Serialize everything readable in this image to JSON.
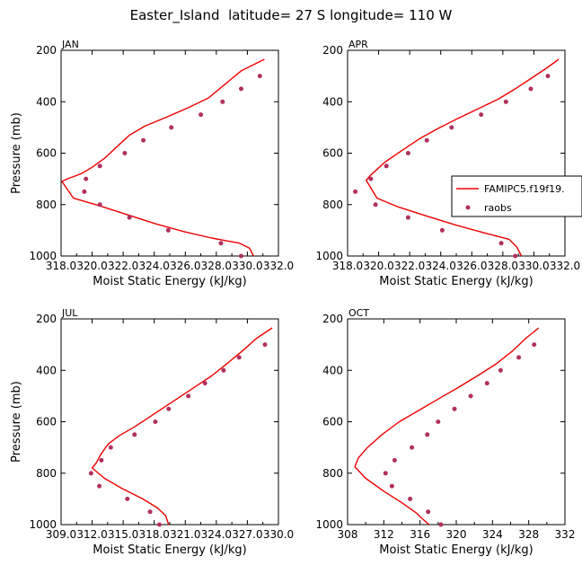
{
  "title": "Easter_Island  latitude= 27 S longitude= 110 W",
  "colors": {
    "model": "#ee0000",
    "obs": "#b03060"
  },
  "legend": {
    "model_label": "FAMIPC5.f19f19.",
    "obs_label": "raobs"
  },
  "chart_data": [
    {
      "type": "line",
      "panel": "JAN",
      "xlabel": "Moist Static Energy (kJ/kg)",
      "ylabel": "Pressure (mb)",
      "xlim": [
        318.0,
        332.0
      ],
      "ylim": [
        1000,
        200
      ],
      "xticks": [
        "318.0",
        "320.0",
        "322.0",
        "324.0",
        "326.0",
        "328.0",
        "330.0",
        "332.0"
      ],
      "yticks": [
        "200",
        "400",
        "600",
        "800",
        "1000"
      ],
      "series": [
        {
          "name": "FAMIPC5.f19f19.",
          "style": "line",
          "x": [
            331.1,
            329.6,
            328.6,
            327.5,
            326.3,
            324.8,
            323.4,
            322.4,
            321.6,
            320.8,
            320.0,
            319.3,
            318.4,
            318.05,
            318.8,
            320.5,
            322.3,
            324.1,
            325.9,
            327.7,
            329.5,
            330.15,
            330.4
          ],
          "y": [
            235,
            280,
            330,
            385,
            420,
            460,
            495,
            530,
            575,
            620,
            655,
            680,
            700,
            710,
            775,
            805,
            840,
            875,
            905,
            930,
            950,
            970,
            1000
          ]
        },
        {
          "name": "raobs",
          "style": "markers",
          "x": [
            330.8,
            329.6,
            328.4,
            327.0,
            325.1,
            323.3,
            322.1,
            320.5,
            319.6,
            319.5,
            320.5,
            322.4,
            324.9,
            328.3,
            329.6
          ],
          "y": [
            300,
            350,
            400,
            450,
            500,
            550,
            600,
            650,
            700,
            750,
            800,
            850,
            900,
            950,
            1000
          ]
        }
      ]
    },
    {
      "type": "line",
      "panel": "APR",
      "xlabel": "Moist Static Energy (kJ/kg)",
      "ylabel": "",
      "xlim": [
        318.0,
        332.0
      ],
      "ylim": [
        1000,
        200
      ],
      "xticks": [
        "318.0",
        "320.0",
        "322.0",
        "324.0",
        "326.0",
        "328.0",
        "330.0",
        "332.0"
      ],
      "yticks": [
        "200",
        "400",
        "600",
        "800",
        "1000"
      ],
      "series": [
        {
          "name": "FAMIPC5.f19f19.",
          "style": "line",
          "x": [
            331.6,
            330.8,
            329.8,
            328.8,
            327.7,
            326.5,
            325.1,
            323.8,
            322.6,
            321.5,
            320.4,
            319.5,
            319.2,
            319.9,
            321.3,
            323.1,
            325.0,
            326.8,
            328.4,
            328.9,
            329.2
          ],
          "y": [
            235,
            270,
            310,
            350,
            390,
            425,
            465,
            505,
            545,
            590,
            635,
            685,
            705,
            775,
            810,
            845,
            880,
            910,
            935,
            965,
            1000
          ]
        },
        {
          "name": "raobs",
          "style": "markers",
          "x": [
            330.9,
            329.8,
            328.2,
            326.6,
            324.7,
            323.1,
            321.9,
            320.5,
            319.5,
            318.5,
            319.8,
            321.9,
            324.1,
            327.9,
            328.8
          ],
          "y": [
            300,
            350,
            400,
            450,
            500,
            550,
            600,
            650,
            700,
            750,
            800,
            850,
            900,
            950,
            1000
          ]
        }
      ]
    },
    {
      "type": "line",
      "panel": "JUL",
      "xlabel": "Moist Static Energy (kJ/kg)",
      "ylabel": "Pressure (mb)",
      "xlim": [
        309.0,
        330.0
      ],
      "ylim": [
        1000,
        200
      ],
      "xticks": [
        "309.0",
        "312.0",
        "315.0",
        "318.0",
        "321.0",
        "324.0",
        "327.0",
        "330.0"
      ],
      "yticks": [
        "200",
        "400",
        "600",
        "800",
        "1000"
      ],
      "series": [
        {
          "name": "FAMIPC5.f19f19.",
          "style": "line",
          "x": [
            329.4,
            327.9,
            326.5,
            325.0,
            323.6,
            322.1,
            320.6,
            319.1,
            317.6,
            316.1,
            314.6,
            313.6,
            313.3,
            312.8,
            312.4,
            312.0,
            313.2,
            314.9,
            316.9,
            318.3,
            319.1,
            319.4
          ],
          "y": [
            235,
            275,
            325,
            375,
            420,
            460,
            500,
            540,
            580,
            620,
            655,
            685,
            700,
            730,
            760,
            780,
            820,
            860,
            900,
            935,
            965,
            1000
          ]
        },
        {
          "name": "raobs",
          "style": "markers",
          "x": [
            328.7,
            326.2,
            324.7,
            322.9,
            321.3,
            319.4,
            318.1,
            316.1,
            313.8,
            312.9,
            311.9,
            312.7,
            315.4,
            317.6,
            318.5
          ],
          "y": [
            300,
            350,
            400,
            450,
            500,
            550,
            600,
            650,
            700,
            750,
            800,
            850,
            900,
            950,
            1000
          ]
        }
      ]
    },
    {
      "type": "line",
      "panel": "OCT",
      "xlabel": "Moist Static Energy (kJ/kg)",
      "ylabel": "",
      "xlim": [
        308,
        332
      ],
      "ylim": [
        1000,
        200
      ],
      "xticks": [
        "308",
        "312",
        "316",
        "320",
        "324",
        "328",
        "332"
      ],
      "yticks": [
        "200",
        "400",
        "600",
        "800",
        "1000"
      ],
      "series": [
        {
          "name": "FAMIPC5.f19f19.",
          "style": "line",
          "x": [
            329.1,
            327.7,
            326.2,
            324.4,
            322.4,
            320.3,
            318.1,
            315.9,
            313.7,
            311.8,
            310.2,
            309.2,
            308.8,
            310.0,
            312.0,
            314.0,
            315.6,
            316.5,
            317.0
          ],
          "y": [
            235,
            275,
            325,
            375,
            420,
            465,
            510,
            555,
            600,
            650,
            700,
            740,
            775,
            820,
            870,
            915,
            955,
            985,
            1000
          ]
        },
        {
          "name": "raobs",
          "style": "markers",
          "x": [
            328.6,
            326.9,
            324.9,
            323.4,
            321.6,
            319.8,
            318.0,
            316.8,
            315.1,
            313.2,
            312.2,
            312.9,
            314.9,
            316.9,
            318.3
          ],
          "y": [
            300,
            350,
            400,
            450,
            500,
            550,
            600,
            650,
            700,
            750,
            800,
            850,
            900,
            950,
            1000
          ]
        }
      ]
    }
  ]
}
